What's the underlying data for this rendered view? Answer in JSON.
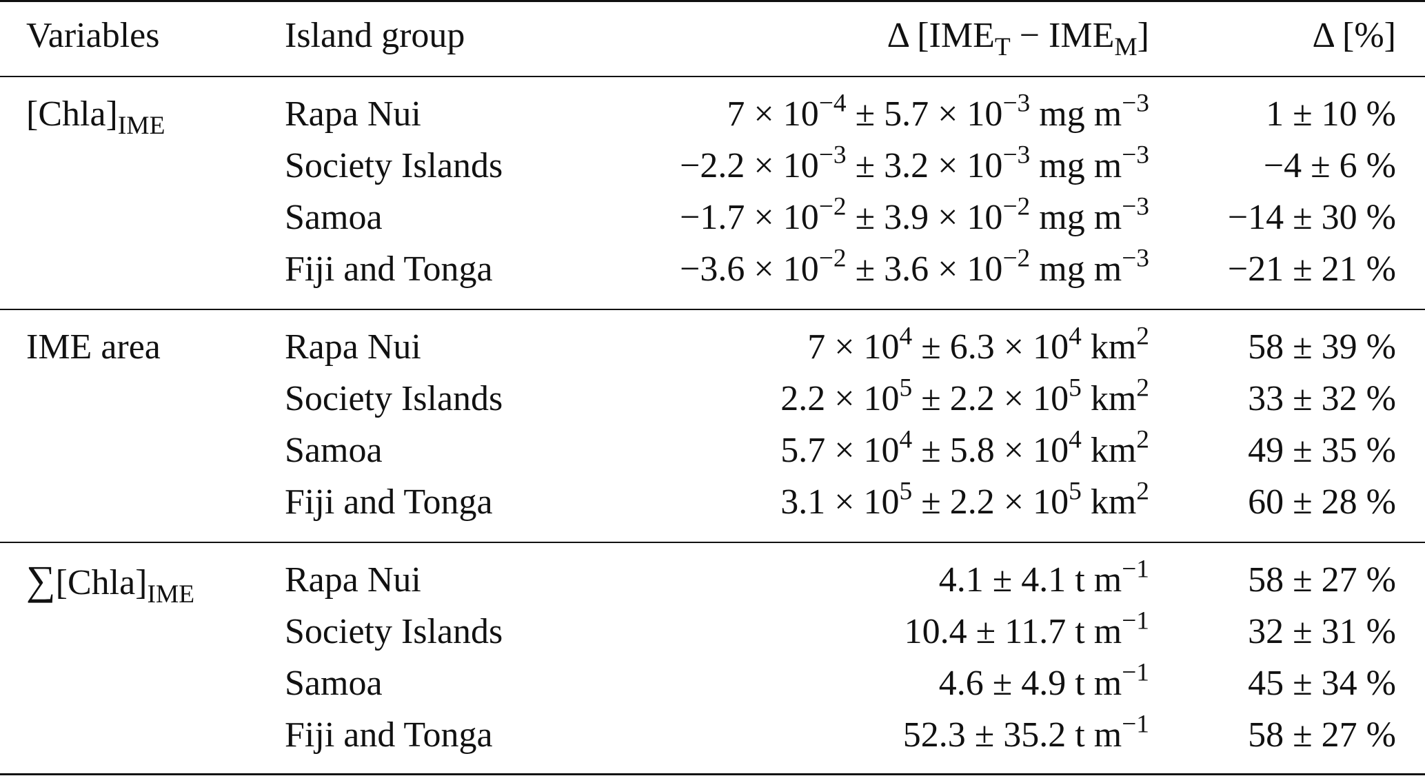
{
  "table": {
    "header": {
      "variables": "Variables",
      "island_group": "Island group",
      "delta_prefix": "Δ [IME",
      "delta_sub_t": "T",
      "delta_mid": " − IME",
      "delta_sub_m": "M",
      "delta_suffix": "]",
      "delta_pct": "Δ [%]"
    },
    "groups": [
      {
        "variable_main": "[Chla]",
        "variable_sub": "IME",
        "rows": [
          {
            "island": "Rapa Nui",
            "mean": "7 × 10",
            "mean_exp": "−4",
            "err": " ± 5.7 × 10",
            "err_exp": "−3",
            "unit": " mg m",
            "unit_exp": "−3",
            "pct": "1 ± 10 %"
          },
          {
            "island": "Society Islands",
            "mean": "−2.2 × 10",
            "mean_exp": "−3",
            "err": " ± 3.2 × 10",
            "err_exp": "−3",
            "unit": " mg m",
            "unit_exp": "−3",
            "pct": "−4 ± 6 %"
          },
          {
            "island": "Samoa",
            "mean": "−1.7 × 10",
            "mean_exp": "−2",
            "err": " ± 3.9 × 10",
            "err_exp": "−2",
            "unit": " mg m",
            "unit_exp": "−3",
            "pct": "−14 ± 30 %"
          },
          {
            "island": "Fiji and Tonga",
            "mean": "−3.6 × 10",
            "mean_exp": "−2",
            "err": " ± 3.6 × 10",
            "err_exp": "−2",
            "unit": " mg m",
            "unit_exp": "−3",
            "pct": "−21 ± 21 %"
          }
        ]
      },
      {
        "variable_main": "IME area",
        "variable_sub": "",
        "rows": [
          {
            "island": "Rapa Nui",
            "mean": "7 × 10",
            "mean_exp": "4",
            "err": " ± 6.3 × 10",
            "err_exp": "4",
            "unit": " km",
            "unit_exp": "2",
            "pct": "58 ± 39 %"
          },
          {
            "island": "Society Islands",
            "mean": "2.2 × 10",
            "mean_exp": "5",
            "err": " ± 2.2 × 10",
            "err_exp": "5",
            "unit": " km",
            "unit_exp": "2",
            "pct": "33 ± 32 %"
          },
          {
            "island": "Samoa",
            "mean": "5.7 × 10",
            "mean_exp": "4",
            "err": " ± 5.8 × 10",
            "err_exp": "4",
            "unit": " km",
            "unit_exp": "2",
            "pct": "49 ± 35 %"
          },
          {
            "island": "Fiji and Tonga",
            "mean": "3.1 × 10",
            "mean_exp": "5",
            "err": " ± 2.2 × 10",
            "err_exp": "5",
            "unit": " km",
            "unit_exp": "2",
            "pct": "60 ± 28 %"
          }
        ]
      },
      {
        "variable_symbol": "∑",
        "variable_main": "[Chla]",
        "variable_sub": "IME",
        "rows": [
          {
            "island": "Rapa Nui",
            "value": "4.1 ± 4.1 t m",
            "unit_exp": "−1",
            "pct": "58 ± 27 %"
          },
          {
            "island": "Society Islands",
            "value": "10.4 ± 11.7 t m",
            "unit_exp": "−1",
            "pct": "32 ± 31 %"
          },
          {
            "island": "Samoa",
            "value": "4.6 ± 4.9 t m",
            "unit_exp": "−1",
            "pct": "45 ± 34 %"
          },
          {
            "island": "Fiji and Tonga",
            "value": "52.3 ± 35.2 t m",
            "unit_exp": "−1",
            "pct": "58 ± 27 %"
          }
        ]
      }
    ]
  }
}
